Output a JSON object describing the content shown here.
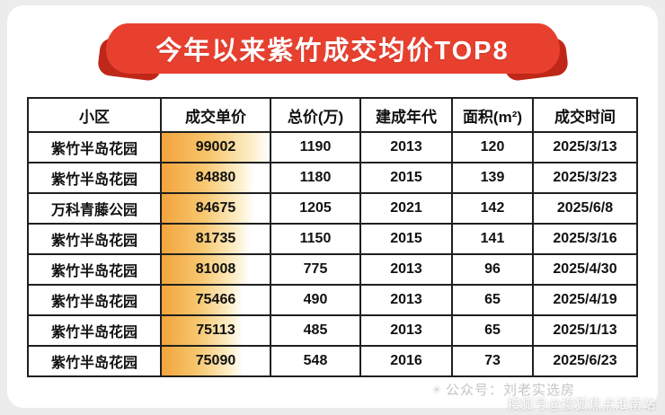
{
  "banner": {
    "title": "今年以来紫竹成交均价TOP8"
  },
  "chart_data": {
    "type": "table",
    "title": "今年以来紫竹成交均价TOP8",
    "columns": [
      "小区",
      "成交单价",
      "总价(万)",
      "建成年代",
      "面积(m²)",
      "成交时间"
    ],
    "rows": [
      [
        "紫竹半岛花园",
        99002,
        1190,
        2013,
        120,
        "2025/3/13"
      ],
      [
        "紫竹半岛花园",
        84880,
        1180,
        2015,
        139,
        "2025/3/23"
      ],
      [
        "万科青藤公园",
        84675,
        1205,
        2021,
        142,
        "2025/6/8"
      ],
      [
        "紫竹半岛花园",
        81735,
        1150,
        2015,
        141,
        "2025/3/16"
      ],
      [
        "紫竹半岛花园",
        81008,
        775,
        2013,
        96,
        "2025/4/30"
      ],
      [
        "紫竹半岛花园",
        75466,
        490,
        2013,
        65,
        "2025/4/19"
      ],
      [
        "紫竹半岛花园",
        75113,
        485,
        2013,
        65,
        "2025/1/13"
      ],
      [
        "紫竹半岛花园",
        75090,
        548,
        2016,
        73,
        "2025/6/23"
      ]
    ],
    "highlight_column": "成交单价",
    "bar_gradient": [
      "#f2a43c",
      "#fcedc6"
    ],
    "layout": {
      "grid": true,
      "header_row": true
    }
  },
  "footer": {
    "watermark": "公众号：刘老实选房",
    "source_badge": "搜狐号@搜狐焦点淮南站"
  },
  "colors": {
    "banner_red": "#e8402f",
    "banner_dark_red": "#bf2718",
    "table_border": "#1f1f1f",
    "background": "#ececec"
  }
}
